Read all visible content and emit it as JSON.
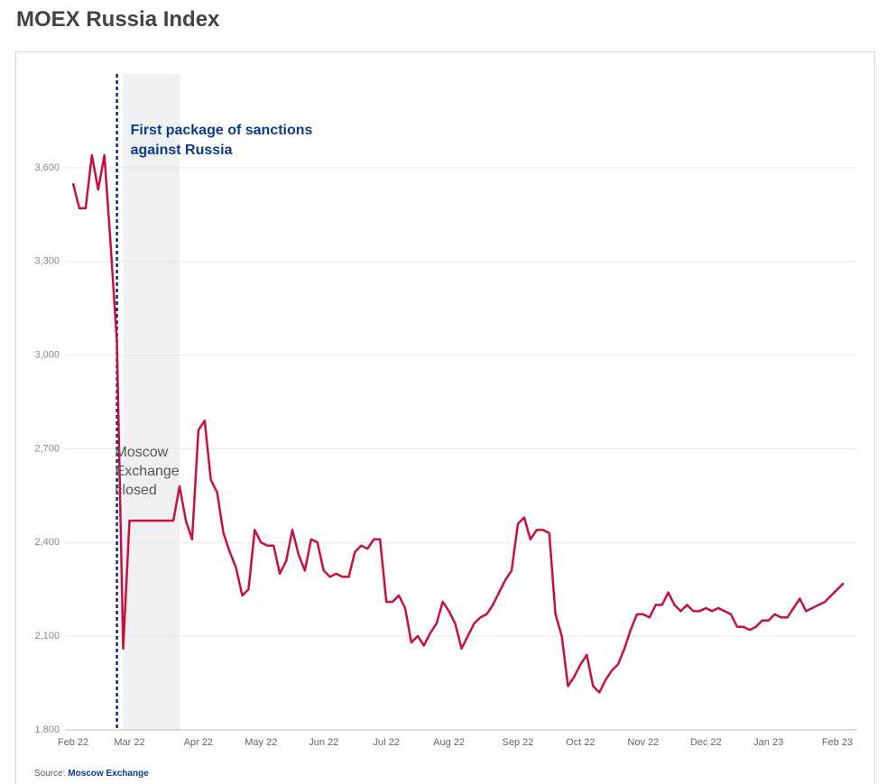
{
  "chart_data": {
    "type": "line",
    "title": "MOEX Russia Index",
    "source_label": "Source:",
    "source": "Moscow Exchange",
    "categories": [
      "Feb 22",
      null,
      null,
      null,
      null,
      null,
      null,
      null,
      null,
      "Mar 22",
      null,
      null,
      null,
      null,
      null,
      null,
      null,
      null,
      null,
      null,
      "Apr 22",
      null,
      null,
      null,
      null,
      null,
      null,
      null,
      null,
      null,
      "May 22",
      null,
      null,
      null,
      null,
      null,
      null,
      null,
      null,
      null,
      "Jun 22",
      null,
      null,
      null,
      null,
      null,
      null,
      null,
      null,
      null,
      "Jul 22",
      null,
      null,
      null,
      null,
      null,
      null,
      null,
      null,
      null,
      "Aug 22",
      null,
      null,
      null,
      null,
      null,
      null,
      null,
      null,
      null,
      null,
      "Sep 22",
      null,
      null,
      null,
      null,
      null,
      null,
      null,
      null,
      null,
      "Oct 22",
      null,
      null,
      null,
      null,
      null,
      null,
      null,
      null,
      null,
      "Nov 22",
      null,
      null,
      null,
      null,
      null,
      null,
      null,
      null,
      null,
      "Dec 22",
      null,
      null,
      null,
      null,
      null,
      null,
      null,
      null,
      null,
      "Jan 23",
      null,
      null,
      null,
      null,
      null,
      null,
      null,
      null,
      null,
      null,
      "Feb 23",
      null
    ],
    "series": [
      {
        "name": "MOEX Russia Index",
        "color": "#c8103e",
        "values": [
          3550,
          3470,
          3470,
          3640,
          3530,
          3640,
          3350,
          3040,
          2060,
          2470,
          2470,
          2470,
          2470,
          2470,
          2470,
          2470,
          2470,
          2580,
          2470,
          2410,
          2760,
          2790,
          2600,
          2560,
          2430,
          2370,
          2320,
          2230,
          2250,
          2440,
          2400,
          2390,
          2390,
          2300,
          2340,
          2440,
          2360,
          2310,
          2410,
          2400,
          2310,
          2290,
          2300,
          2290,
          2290,
          2370,
          2390,
          2380,
          2410,
          2410,
          2210,
          2210,
          2230,
          2190,
          2080,
          2100,
          2070,
          2110,
          2140,
          2210,
          2180,
          2140,
          2060,
          2100,
          2140,
          2160,
          2170,
          2200,
          2240,
          2280,
          2310,
          2460,
          2480,
          2410,
          2440,
          2440,
          2430,
          2170,
          2100,
          1940,
          1970,
          2010,
          2040,
          1940,
          1920,
          1960,
          1990,
          2010,
          2060,
          2120,
          2170,
          2170,
          2160,
          2200,
          2200,
          2240,
          2200,
          2180,
          2200,
          2180,
          2180,
          2190,
          2180,
          2190,
          2180,
          2170,
          2130,
          2130,
          2120,
          2130,
          2150,
          2150,
          2170,
          2160,
          2160,
          2190,
          2220,
          2180,
          2190,
          2200,
          2210,
          2230,
          2250,
          2270
        ]
      }
    ],
    "ylim": [
      1800,
      3900
    ],
    "yticks": [
      {
        "value": 1800,
        "label": "1,800"
      },
      {
        "value": 2100,
        "label": "2,100"
      },
      {
        "value": 2400,
        "label": "2,400"
      },
      {
        "value": 2700,
        "label": "2,700"
      },
      {
        "value": 3000,
        "label": "3,000"
      },
      {
        "value": 3300,
        "label": "3,300"
      },
      {
        "value": 3600,
        "label": "3,600"
      }
    ],
    "grid": true,
    "annotations": [
      {
        "text": "First package of sanctions against Russia",
        "x": 7
      },
      {
        "text": "Moscow Exchange closed",
        "from": 8,
        "to": 17
      }
    ]
  }
}
